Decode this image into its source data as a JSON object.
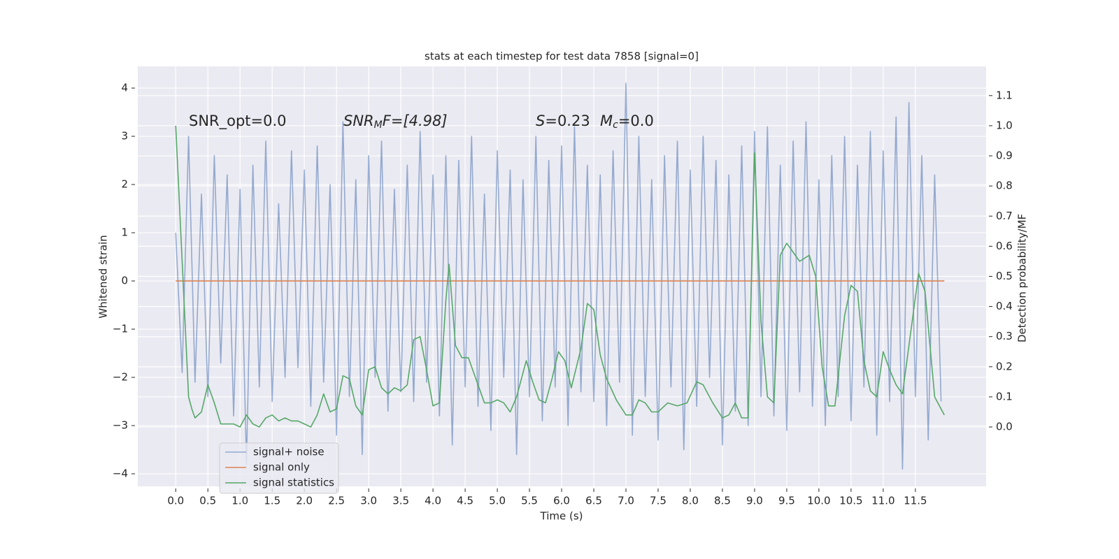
{
  "chart_data": {
    "type": "line",
    "title": "stats at each timestep for test data 7858 [signal=0]",
    "x_label": "Time (s)",
    "y_label": "Whitened strain",
    "y2_label": "Detection probability/MF",
    "background": "#eaeaf2",
    "grid": true,
    "legend_loc": "lower left",
    "annotations": [
      {
        "text": "SNR_opt=0.0"
      },
      {
        "parts": [
          "SNR",
          "M",
          "F=[4.98]"
        ]
      },
      {
        "parts": [
          "S",
          "=0.23"
        ]
      },
      {
        "parts": [
          "M",
          "c",
          "=0.0"
        ]
      }
    ],
    "xlim": [
      -0.59,
      12.6
    ],
    "ylim": [
      -4.26,
      4.45
    ],
    "y2lim": [
      -0.197,
      1.197
    ],
    "xticks": [
      {
        "value": 0,
        "label": "0.0"
      },
      {
        "value": 0.5,
        "label": "0.5"
      },
      {
        "value": 1,
        "label": "1.0"
      },
      {
        "value": 1.5,
        "label": "1.5"
      },
      {
        "value": 2,
        "label": "2.0"
      },
      {
        "value": 2.5,
        "label": "2.5"
      },
      {
        "value": 3,
        "label": "3.0"
      },
      {
        "value": 3.5,
        "label": "3.5"
      },
      {
        "value": 4,
        "label": "4.0"
      },
      {
        "value": 4.5,
        "label": "4.5"
      },
      {
        "value": 5,
        "label": "5.0"
      },
      {
        "value": 5.5,
        "label": "5.5"
      },
      {
        "value": 6,
        "label": "6.0"
      },
      {
        "value": 6.5,
        "label": "6.5"
      },
      {
        "value": 7,
        "label": "7.0"
      },
      {
        "value": 7.5,
        "label": "7.5"
      },
      {
        "value": 8,
        "label": "8.0"
      },
      {
        "value": 8.5,
        "label": "8.5"
      },
      {
        "value": 9,
        "label": "9.0"
      },
      {
        "value": 9.5,
        "label": "9.5"
      },
      {
        "value": 10,
        "label": "10.0"
      },
      {
        "value": 10.5,
        "label": "10.5"
      },
      {
        "value": 11,
        "label": "11.0"
      },
      {
        "value": 11.5,
        "label": "11.5"
      }
    ],
    "yticks": [
      {
        "value": -4,
        "label": "−4"
      },
      {
        "value": -3,
        "label": "−3"
      },
      {
        "value": -2,
        "label": "−2"
      },
      {
        "value": -1,
        "label": "−1"
      },
      0,
      1,
      2,
      3,
      4
    ],
    "y2ticks": [
      {
        "value": 0,
        "label": "0.0"
      },
      {
        "value": 0.1,
        "label": "0.1"
      },
      {
        "value": 0.2,
        "label": "0.2"
      },
      {
        "value": 0.3,
        "label": "0.3"
      },
      {
        "value": 0.4,
        "label": "0.4"
      },
      {
        "value": 0.5,
        "label": "0.5"
      },
      {
        "value": 0.6,
        "label": "0.6"
      },
      {
        "value": 0.7,
        "label": "0.7"
      },
      {
        "value": 0.8,
        "label": "0.8"
      },
      {
        "value": 0.9,
        "label": "0.9"
      },
      {
        "value": 1,
        "label": "1.0"
      },
      {
        "value": 1.1,
        "label": "1.1"
      }
    ],
    "series": [
      {
        "name": "signal+ noise",
        "color": "#4c72b0",
        "opacity": 0.55,
        "x": [
          0.0,
          0.1,
          0.2,
          0.3,
          0.4,
          0.5,
          0.6,
          0.7,
          0.8,
          0.9,
          1.0,
          1.1,
          1.2,
          1.3,
          1.4,
          1.5,
          1.6,
          1.7,
          1.8,
          1.9,
          2.0,
          2.1,
          2.2,
          2.3,
          2.4,
          2.5,
          2.6,
          2.7,
          2.8,
          2.9,
          3.0,
          3.1,
          3.2,
          3.3,
          3.4,
          3.5,
          3.6,
          3.7,
          3.8,
          3.9,
          4.0,
          4.1,
          4.2,
          4.3,
          4.4,
          4.5,
          4.6,
          4.7,
          4.8,
          4.9,
          5.0,
          5.1,
          5.2,
          5.3,
          5.4,
          5.5,
          5.6,
          5.7,
          5.8,
          5.9,
          6.0,
          6.1,
          6.2,
          6.3,
          6.4,
          6.5,
          6.6,
          6.7,
          6.8,
          6.9,
          7.0,
          7.1,
          7.2,
          7.3,
          7.4,
          7.5,
          7.6,
          7.7,
          7.8,
          7.9,
          8.0,
          8.1,
          8.2,
          8.3,
          8.4,
          8.5,
          8.6,
          8.7,
          8.8,
          8.9,
          9.0,
          9.1,
          9.2,
          9.3,
          9.4,
          9.5,
          9.6,
          9.7,
          9.8,
          9.9,
          10.0,
          10.1,
          10.2,
          10.3,
          10.4,
          10.5,
          10.6,
          10.7,
          10.8,
          10.9,
          11.0,
          11.1,
          11.2,
          11.3,
          11.4,
          11.5,
          11.6,
          11.7,
          11.8,
          11.9
        ],
        "values": [
          1.0,
          -1.9,
          3.0,
          -2.1,
          1.8,
          -2.4,
          2.6,
          -1.7,
          2.2,
          -2.8,
          1.9,
          -3.8,
          2.4,
          -2.2,
          2.9,
          -2.5,
          1.6,
          -2.0,
          2.7,
          -1.8,
          2.3,
          -2.6,
          2.8,
          -2.1,
          2.0,
          -3.2,
          3.3,
          -2.4,
          2.1,
          -3.6,
          2.6,
          -2.0,
          2.9,
          -2.7,
          1.9,
          -2.3,
          2.4,
          -2.5,
          3.1,
          -2.1,
          2.2,
          -2.8,
          2.6,
          -3.4,
          2.5,
          -2.2,
          3.0,
          -2.6,
          1.8,
          -3.1,
          2.7,
          -2.0,
          2.3,
          -3.6,
          2.1,
          -2.4,
          3.0,
          -2.9,
          2.5,
          -2.2,
          2.8,
          -3.0,
          3.2,
          -2.3,
          2.4,
          -2.5,
          2.2,
          -3.0,
          2.7,
          -2.1,
          4.1,
          -3.2,
          3.0,
          -2.4,
          2.1,
          -3.3,
          2.6,
          -2.2,
          2.9,
          -3.5,
          2.3,
          -2.6,
          3.0,
          -2.0,
          2.5,
          -3.4,
          2.2,
          -2.7,
          2.8,
          -3.0,
          3.1,
          -2.4,
          3.2,
          -2.8,
          2.4,
          -3.1,
          2.9,
          -2.3,
          3.3,
          -2.6,
          2.1,
          -3.0,
          2.6,
          -2.4,
          3.0,
          -2.9,
          2.4,
          -2.2,
          3.1,
          -3.2,
          2.7,
          -2.5,
          3.4,
          -3.9,
          3.7,
          -2.4,
          2.6,
          -3.3,
          2.2,
          -2.5
        ]
      },
      {
        "name": "signal only",
        "color": "#dd8452",
        "opacity": 1,
        "x": [
          0.0,
          11.95
        ],
        "values": [
          0,
          0
        ]
      },
      {
        "name": "signal statistics",
        "color": "#55a868",
        "opacity": 1,
        "axis": "y2",
        "x": [
          0.0,
          0.1,
          0.2,
          0.25,
          0.3,
          0.4,
          0.5,
          0.6,
          0.7,
          0.8,
          0.9,
          1.0,
          1.1,
          1.2,
          1.3,
          1.4,
          1.5,
          1.6,
          1.7,
          1.8,
          1.9,
          2.0,
          2.1,
          2.2,
          2.3,
          2.4,
          2.5,
          2.6,
          2.7,
          2.8,
          2.9,
          3.0,
          3.1,
          3.2,
          3.3,
          3.4,
          3.5,
          3.6,
          3.7,
          3.8,
          3.9,
          4.0,
          4.1,
          4.2,
          4.25,
          4.35,
          4.45,
          4.55,
          4.7,
          4.8,
          4.9,
          5.0,
          5.1,
          5.2,
          5.3,
          5.45,
          5.55,
          5.65,
          5.75,
          5.85,
          5.95,
          6.05,
          6.15,
          6.3,
          6.4,
          6.5,
          6.6,
          6.7,
          6.85,
          7.0,
          7.1,
          7.2,
          7.3,
          7.4,
          7.5,
          7.65,
          7.8,
          7.95,
          8.1,
          8.2,
          8.35,
          8.5,
          8.6,
          8.7,
          8.8,
          8.9,
          9.0,
          9.1,
          9.2,
          9.3,
          9.4,
          9.5,
          9.6,
          9.7,
          9.85,
          9.95,
          10.05,
          10.15,
          10.25,
          10.4,
          10.5,
          10.6,
          10.7,
          10.8,
          10.9,
          11.0,
          11.1,
          11.2,
          11.3,
          11.45,
          11.55,
          11.65,
          11.8,
          11.95
        ],
        "values": [
          1.0,
          0.55,
          0.1,
          0.06,
          0.03,
          0.05,
          0.14,
          0.08,
          0.01,
          0.01,
          0.01,
          0.0,
          0.04,
          0.01,
          0.0,
          0.03,
          0.04,
          0.02,
          0.03,
          0.02,
          0.02,
          0.01,
          0.0,
          0.04,
          0.11,
          0.05,
          0.06,
          0.17,
          0.16,
          0.07,
          0.04,
          0.19,
          0.2,
          0.13,
          0.11,
          0.13,
          0.12,
          0.14,
          0.29,
          0.3,
          0.19,
          0.07,
          0.08,
          0.42,
          0.54,
          0.27,
          0.23,
          0.23,
          0.14,
          0.08,
          0.08,
          0.09,
          0.08,
          0.05,
          0.1,
          0.22,
          0.15,
          0.09,
          0.08,
          0.16,
          0.25,
          0.22,
          0.13,
          0.26,
          0.41,
          0.39,
          0.24,
          0.16,
          0.09,
          0.04,
          0.04,
          0.09,
          0.08,
          0.05,
          0.05,
          0.08,
          0.07,
          0.08,
          0.15,
          0.14,
          0.08,
          0.03,
          0.04,
          0.08,
          0.03,
          0.03,
          0.91,
          0.35,
          0.1,
          0.08,
          0.57,
          0.61,
          0.58,
          0.55,
          0.57,
          0.5,
          0.2,
          0.07,
          0.07,
          0.37,
          0.47,
          0.45,
          0.22,
          0.12,
          0.1,
          0.25,
          0.19,
          0.14,
          0.11,
          0.35,
          0.51,
          0.45,
          0.1,
          0.04
        ]
      }
    ]
  }
}
